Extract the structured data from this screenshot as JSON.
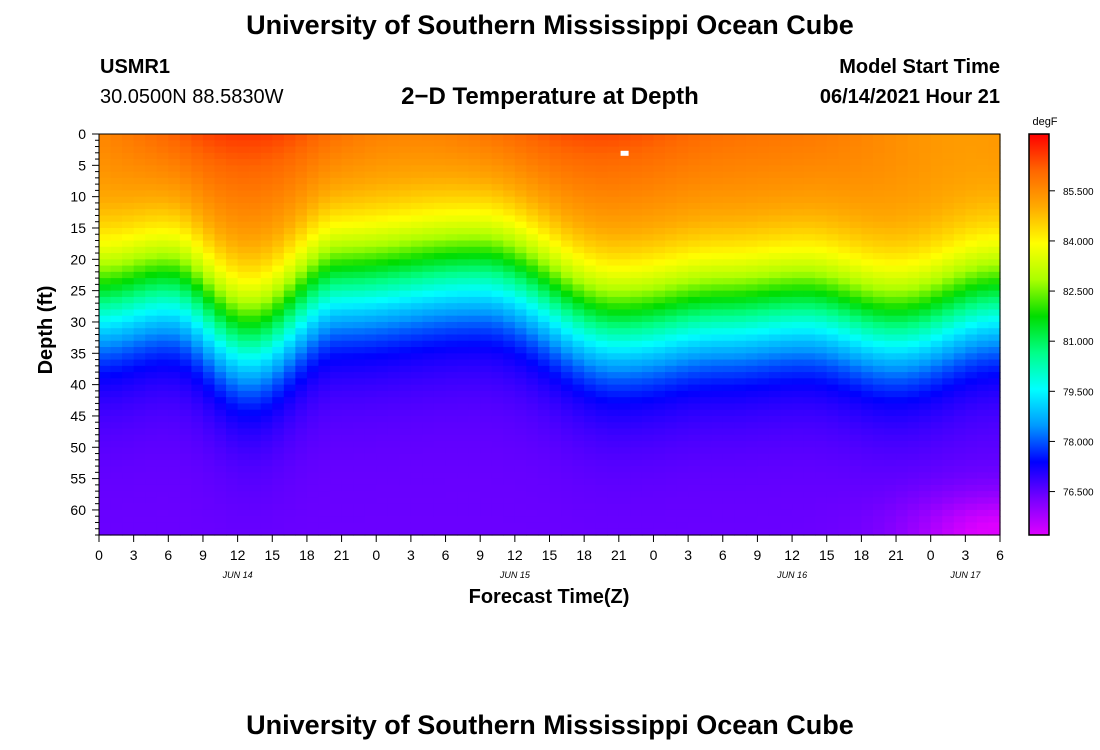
{
  "header": {
    "title": "University of Southern Mississippi Ocean Cube",
    "station": "USMR1",
    "coords": "30.0500N  88.5830W",
    "model_start_label": "Model Start Time",
    "model_start_value": "06/14/2021 Hour 21"
  },
  "footer": {
    "title": "University of Southern Mississippi Ocean Cube"
  },
  "chart_data": {
    "type": "heatmap",
    "title": "2−D Temperature at Depth",
    "xlabel": "Forecast Time(Z)",
    "ylabel": "Depth (ft)",
    "x_ticks": [
      "0",
      "3",
      "6",
      "9",
      "12",
      "15",
      "18",
      "21",
      "0",
      "3",
      "6",
      "9",
      "12",
      "15",
      "18",
      "21",
      "0",
      "3",
      "6",
      "9",
      "12",
      "15",
      "18",
      "21",
      "0",
      "3",
      "6"
    ],
    "x_range_hours": [
      0,
      78
    ],
    "date_labels": [
      {
        "text": "JUN 14",
        "hour": 12
      },
      {
        "text": "JUN 15",
        "hour": 36
      },
      {
        "text": "JUN 16",
        "hour": 60
      },
      {
        "text": "JUN 17",
        "hour": 75
      }
    ],
    "y_ticks": [
      "0",
      "5",
      "10",
      "15",
      "20",
      "25",
      "30",
      "35",
      "40",
      "45",
      "50",
      "55",
      "60"
    ],
    "y_range_ft": [
      0,
      64
    ],
    "colorbar": {
      "unit": "degF",
      "ticks": [
        "85.500",
        "84.000",
        "82.500",
        "81.000",
        "79.500",
        "78.000",
        "76.500"
      ],
      "tick_values": [
        85.5,
        84.0,
        82.5,
        81.0,
        79.5,
        78.0,
        76.5
      ],
      "range": [
        75.2,
        87.2
      ],
      "colors": [
        "#dd00ff",
        "#7700ff",
        "#0000ff",
        "#0099ff",
        "#00ffff",
        "#00ff88",
        "#00dd00",
        "#aaff00",
        "#ffff00",
        "#ffaa00",
        "#ff6600",
        "#ff0000"
      ]
    },
    "model": {
      "surface_temp": 85.6,
      "bottom_temp": 76.4,
      "thermocline_depth_ft": [
        {
          "hour": 0,
          "depth": 26
        },
        {
          "hour": 6,
          "depth": 24
        },
        {
          "hour": 13,
          "depth": 32
        },
        {
          "hour": 21,
          "depth": 23
        },
        {
          "hour": 33,
          "depth": 21
        },
        {
          "hour": 45,
          "depth": 30
        },
        {
          "hour": 54,
          "depth": 28
        },
        {
          "hour": 61,
          "depth": 27
        },
        {
          "hour": 69,
          "depth": 30
        },
        {
          "hour": 78,
          "depth": 26
        }
      ],
      "warm_peak_hours": [
        15,
        45
      ]
    },
    "marker": {
      "hour": 45.5,
      "depth_ft": 3
    }
  }
}
